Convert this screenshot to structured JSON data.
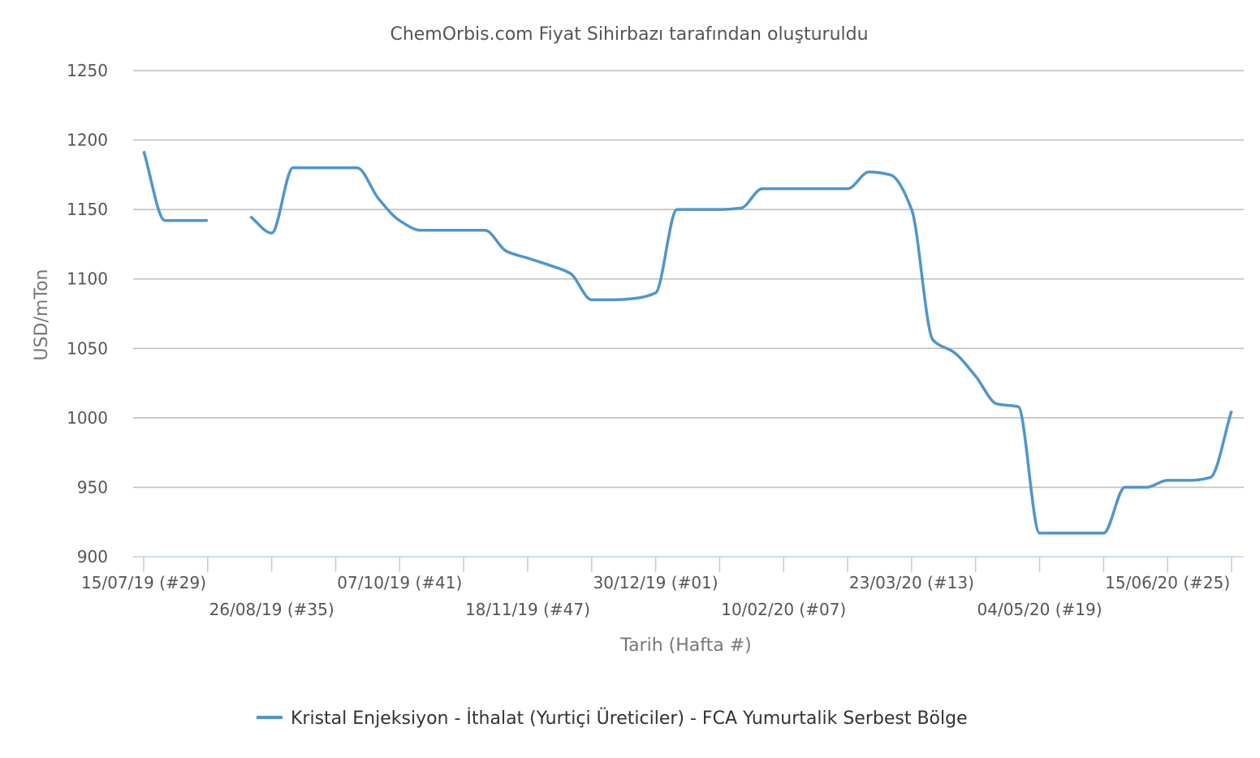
{
  "chart_data": {
    "type": "line",
    "title": "ChemOrbis.com Fiyat Sihirbazı tarafından oluşturuldu",
    "xlabel": "Tarih (Hafta #)",
    "ylabel": "USD/mTon",
    "ylim": [
      900,
      1250
    ],
    "yticks": [
      "900",
      "950",
      "1000",
      "1050",
      "1100",
      "1150",
      "1200",
      "1250"
    ],
    "grid": true,
    "legend_position": "bottom",
    "x_tick_labels": [
      {
        "label": "15/07/19 (#29)",
        "week": 0
      },
      {
        "label": "26/08/19 (#35)",
        "week": 6
      },
      {
        "label": "07/10/19 (#41)",
        "week": 12
      },
      {
        "label": "18/11/19 (#47)",
        "week": 18
      },
      {
        "label": "30/12/19 (#01)",
        "week": 24
      },
      {
        "label": "10/02/20 (#07)",
        "week": 30
      },
      {
        "label": "23/03/20 (#13)",
        "week": 36
      },
      {
        "label": "04/05/20 (#19)",
        "week": 42
      },
      {
        "label": "15/06/20 (#25)",
        "week": 48
      }
    ],
    "series": [
      {
        "name": "Kristal Enjeksiyon - İthalat (Yurtiçi Üreticiler) - FCA Yumurtalik Serbest Bölge",
        "color": "#4f95cd",
        "segments": [
          [
            {
              "date": "15/07/19",
              "week": 0,
              "value": 1192
            },
            {
              "date": "22/07/19",
              "week": 1,
              "value": 1142
            },
            {
              "date": "29/07/19",
              "week": 2,
              "value": 1142
            },
            {
              "date": "05/08/19",
              "week": 3,
              "value": 1142
            }
          ],
          [
            {
              "date": "19/08/19",
              "week": 5,
              "value": 1145
            },
            {
              "date": "26/08/19",
              "week": 6,
              "value": 1133
            },
            {
              "date": "02/09/19",
              "week": 7,
              "value": 1180
            },
            {
              "date": "09/09/19",
              "week": 8,
              "value": 1180
            },
            {
              "date": "16/09/19",
              "week": 9,
              "value": 1180
            },
            {
              "date": "23/09/19",
              "week": 10,
              "value": 1180
            },
            {
              "date": "30/09/19",
              "week": 11,
              "value": 1158
            },
            {
              "date": "07/10/19",
              "week": 12,
              "value": 1142
            },
            {
              "date": "14/10/19",
              "week": 13,
              "value": 1135
            },
            {
              "date": "21/10/19",
              "week": 14,
              "value": 1135
            },
            {
              "date": "28/10/19",
              "week": 15,
              "value": 1135
            },
            {
              "date": "04/11/19",
              "week": 16,
              "value": 1135
            },
            {
              "date": "11/11/19",
              "week": 17,
              "value": 1120
            },
            {
              "date": "18/11/19",
              "week": 18,
              "value": 1115
            },
            {
              "date": "25/11/19",
              "week": 19,
              "value": 1110
            },
            {
              "date": "02/12/19",
              "week": 20,
              "value": 1104
            },
            {
              "date": "09/12/19",
              "week": 21,
              "value": 1085
            },
            {
              "date": "16/12/19",
              "week": 22,
              "value": 1085
            },
            {
              "date": "23/12/19",
              "week": 23,
              "value": 1086
            },
            {
              "date": "30/12/19",
              "week": 24,
              "value": 1090
            },
            {
              "date": "06/01/20",
              "week": 25,
              "value": 1150
            },
            {
              "date": "13/01/20",
              "week": 26,
              "value": 1150
            },
            {
              "date": "20/01/20",
              "week": 27,
              "value": 1150
            },
            {
              "date": "27/01/20",
              "week": 28,
              "value": 1151
            },
            {
              "date": "03/02/20",
              "week": 29,
              "value": 1165
            },
            {
              "date": "10/02/20",
              "week": 30,
              "value": 1165
            },
            {
              "date": "17/02/20",
              "week": 31,
              "value": 1165
            },
            {
              "date": "24/02/20",
              "week": 32,
              "value": 1165
            },
            {
              "date": "02/03/20",
              "week": 33,
              "value": 1165
            },
            {
              "date": "09/03/20",
              "week": 34,
              "value": 1177
            },
            {
              "date": "16/03/20",
              "week": 35,
              "value": 1175
            },
            {
              "date": "23/03/20",
              "week": 36,
              "value": 1150
            },
            {
              "date": "30/03/20",
              "week": 37,
              "value": 1056
            },
            {
              "date": "06/04/20",
              "week": 38,
              "value": 1047
            },
            {
              "date": "13/04/20",
              "week": 39,
              "value": 1030
            },
            {
              "date": "20/04/20",
              "week": 40,
              "value": 1010
            },
            {
              "date": "27/04/20",
              "week": 41,
              "value": 1008
            },
            {
              "date": "04/05/20",
              "week": 42,
              "value": 917
            },
            {
              "date": "11/05/20",
              "week": 43,
              "value": 917
            },
            {
              "date": "18/05/20",
              "week": 44,
              "value": 917
            },
            {
              "date": "25/05/20",
              "week": 45,
              "value": 917
            },
            {
              "date": "01/06/20",
              "week": 46,
              "value": 950
            },
            {
              "date": "08/06/20",
              "week": 47,
              "value": 950
            },
            {
              "date": "15/06/20",
              "week": 48,
              "value": 955
            },
            {
              "date": "22/06/20",
              "week": 49,
              "value": 955
            },
            {
              "date": "29/06/20",
              "week": 50,
              "value": 957
            },
            {
              "date": "06/07/20",
              "week": 51,
              "value": 1005
            }
          ]
        ]
      }
    ]
  }
}
